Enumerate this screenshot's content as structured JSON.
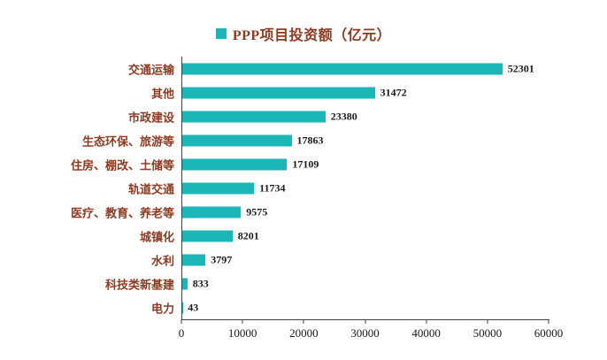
{
  "chart_data": {
    "type": "bar",
    "orientation": "horizontal",
    "title": "PPP项目投资额（亿元）",
    "legend": [
      "PPP项目投资额（亿元）"
    ],
    "categories": [
      "交通运输",
      "其他",
      "市政建设",
      "生态环保、旅游等",
      "住房、棚改、土储等",
      "轨道交通",
      "医疗、教育、养老等",
      "城镇化",
      "水利",
      "科技类新基建",
      "电力"
    ],
    "values": [
      52301,
      31472,
      23380,
      17863,
      17109,
      11734,
      9575,
      8201,
      3797,
      833,
      43
    ],
    "xlabel": "",
    "ylabel": "",
    "xlim": [
      0,
      60000
    ],
    "x_ticks": [
      0,
      10000,
      20000,
      30000,
      40000,
      50000,
      60000
    ],
    "grid": false,
    "legend_position": "top-center",
    "bar_color": "#1db6b6",
    "label_color": "#8c3b22",
    "value_color": "#1a1a1a"
  }
}
